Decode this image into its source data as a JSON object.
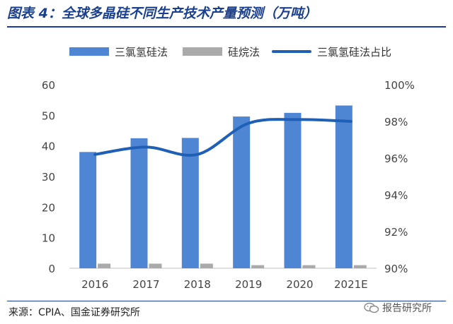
{
  "title": "图表 4：全球多晶硅不同生产技术产量预测（万吨）",
  "source": "来源：CPIA、国金证券研究所",
  "watermark": "报告研究所",
  "chart_data": {
    "type": "bar",
    "categories": [
      "2016",
      "2017",
      "2018",
      "2019",
      "2020",
      "2021E"
    ],
    "series": [
      {
        "name": "三氯氢硅法",
        "type": "bar",
        "axis": "left",
        "color": "#4f86d3",
        "values": [
          38,
          42.5,
          42.6,
          49.6,
          50.8,
          53.2
        ]
      },
      {
        "name": "硅烷法",
        "type": "bar",
        "axis": "left",
        "color": "#aaaaaa",
        "values": [
          1.5,
          1.5,
          1.5,
          1.0,
          1.0,
          1.0
        ]
      },
      {
        "name": "三氯氢硅法占比",
        "type": "line",
        "axis": "right",
        "color": "#1f5fb5",
        "values": [
          96.2,
          96.6,
          96.2,
          97.9,
          98.1,
          98.0
        ]
      }
    ],
    "y_left": {
      "min": 0,
      "max": 60,
      "ticks": [
        "0",
        "10",
        "20",
        "30",
        "40",
        "50",
        "60"
      ]
    },
    "y_right": {
      "min": 90,
      "max": 100,
      "ticks": [
        "90%",
        "92%",
        "94%",
        "96%",
        "98%",
        "100%"
      ]
    },
    "grid": false,
    "legend_position": "top"
  }
}
